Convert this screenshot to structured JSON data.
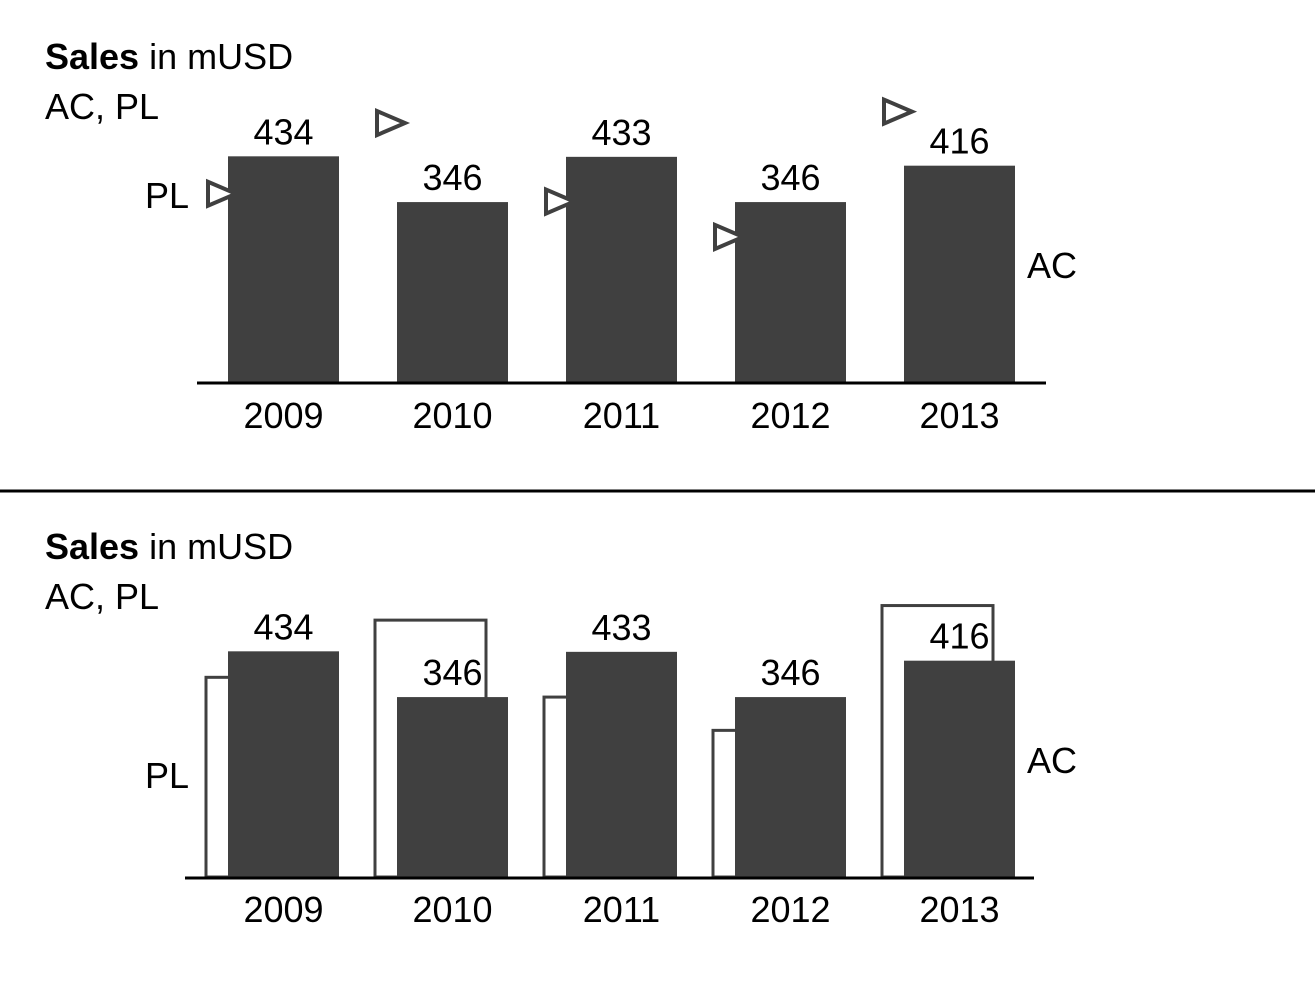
{
  "chart_data": [
    {
      "type": "bar",
      "variant": "triangle-markers",
      "title_bold": "Sales",
      "title_rest": " in mUSD",
      "subtitle": "AC, PL",
      "categories": [
        "2009",
        "2010",
        "2011",
        "2012",
        "2013"
      ],
      "series": [
        {
          "name": "AC",
          "values": [
            434,
            346,
            433,
            346,
            416
          ]
        },
        {
          "name": "PL",
          "values": [
            362,
            498,
            347,
            279,
            520
          ]
        }
      ],
      "data_labels": [
        "434",
        "346",
        "433",
        "346",
        "416"
      ],
      "ac_label": "AC",
      "pl_label": "PL",
      "ylim": [
        0,
        560
      ],
      "grid": false,
      "colors": {
        "ac": "#404040",
        "pl_outline": "#404040",
        "axis": "#000000"
      }
    },
    {
      "type": "bar",
      "variant": "outlined-bars",
      "title_bold": "Sales",
      "title_rest": " in mUSD",
      "subtitle": "AC, PL",
      "categories": [
        "2009",
        "2010",
        "2011",
        "2012",
        "2013"
      ],
      "series": [
        {
          "name": "AC",
          "values": [
            434,
            346,
            433,
            346,
            416
          ]
        },
        {
          "name": "PL",
          "values": [
            384,
            494,
            346,
            282,
            522
          ]
        }
      ],
      "data_labels": [
        "434",
        "346",
        "433",
        "346",
        "416"
      ],
      "ac_label": "AC",
      "pl_label": "PL",
      "ylim": [
        0,
        560
      ],
      "grid": false,
      "colors": {
        "ac": "#404040",
        "pl_outline": "#404040",
        "axis": "#000000"
      }
    }
  ]
}
